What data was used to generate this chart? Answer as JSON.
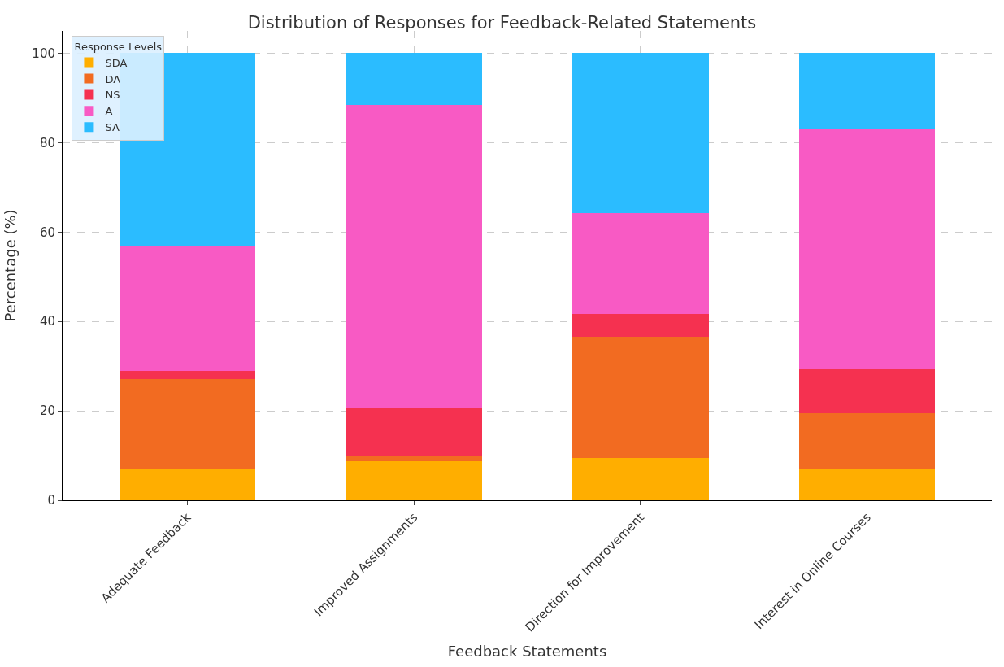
{
  "chart_data": {
    "type": "bar",
    "stacked": true,
    "title": "Distribution of Responses for Feedback-Related Statements",
    "xlabel": "Feedback Statements",
    "ylabel": "Percentage (%)",
    "legend_title": "Response Levels",
    "legend": "top left",
    "grid": true,
    "categories": [
      "Adequate Feedback",
      "Improved Assignments",
      "Direction for Improvement",
      "Interest in Online Courses"
    ],
    "ylim": [
      0,
      105
    ],
    "yticks": [
      0,
      20,
      40,
      60,
      80,
      100
    ],
    "series": [
      {
        "name": "SDA",
        "color": "#ffae00",
        "values": [
          7.0,
          8.7,
          9.5,
          6.9
        ]
      },
      {
        "name": "DA",
        "color": "#f26b21",
        "values": [
          20.1,
          1.1,
          27.0,
          12.6
        ]
      },
      {
        "name": "NS",
        "color": "#f53150",
        "values": [
          1.8,
          10.7,
          5.1,
          9.8
        ]
      },
      {
        "name": "A",
        "color": "#f85ac4",
        "values": [
          27.8,
          67.9,
          22.6,
          53.8
        ]
      },
      {
        "name": "SA",
        "color": "#2bbcff",
        "values": [
          43.3,
          11.6,
          35.8,
          16.9
        ]
      }
    ]
  }
}
